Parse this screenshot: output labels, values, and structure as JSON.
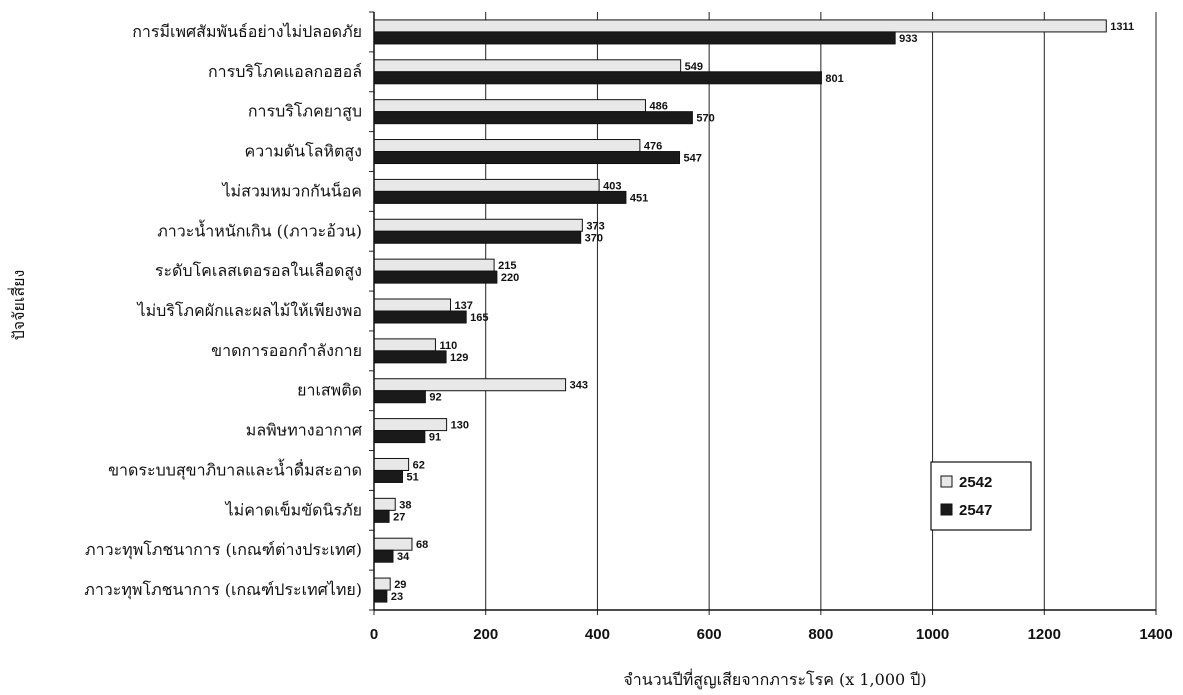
{
  "chart_data": {
    "type": "bar",
    "orientation": "horizontal",
    "categories": [
      "การมีเพศสัมพันธ์อย่างไม่ปลอดภัย",
      "การบริโภคแอลกอฮอล์",
      "การบริโภคยาสูบ",
      "ความดันโลหิตสูง",
      "ไม่สวมหมวกกันน็อค",
      "ภาวะน้ำหนักเกิน ((ภาวะอ้วน)",
      "ระดับโคเลสเตอรอลในเลือดสูง",
      "ไม่บริโภคผักและผลไม้ให้เพียงพอ",
      "ขาดการออกกำลังกาย",
      "ยาเสพติด",
      "มลพิษทางอากาศ",
      "ขาดระบบสุขาภิบาลและน้ำดื่มสะอาด",
      "ไม่คาดเข็มขัดนิรภัย",
      "ภาวะทุพโภชนาการ (เกณฑ์ต่างประเทศ)",
      "ภาวะทุพโภชนาการ (เกณฑ์ประเทศไทย)"
    ],
    "series": [
      {
        "name": "2542",
        "color": "#e8e8e8",
        "values": [
          1311,
          549,
          486,
          476,
          403,
          373,
          215,
          137,
          110,
          343,
          130,
          62,
          38,
          68,
          29
        ],
        "labels": [
          "1311",
          "549",
          "486",
          "476",
          "403",
          "373",
          "215",
          "137",
          "110",
          "343",
          "130",
          "62",
          "38",
          "68",
          "29"
        ]
      },
      {
        "name": "2547",
        "color": "#1a1a1a",
        "values": [
          933,
          801,
          570,
          547,
          451,
          370,
          220,
          165,
          129,
          92,
          91,
          51,
          27,
          34,
          23
        ],
        "labels": [
          "933",
          "801",
          "570",
          "547",
          "451",
          "370",
          "220",
          "165",
          "129",
          "92",
          "91",
          "51",
          "27",
          "34",
          "23"
        ]
      }
    ],
    "xlim": [
      0,
      1400
    ],
    "xticks": [
      0,
      200,
      400,
      600,
      800,
      1000,
      1200,
      1400
    ],
    "xlabel": "จำนวนปีที่สูญเสียจากภาระโรค (x 1,000 ปี)",
    "ylabel": "ปัจจัยเสี่ยง",
    "grid": true,
    "legend_position": "right"
  }
}
